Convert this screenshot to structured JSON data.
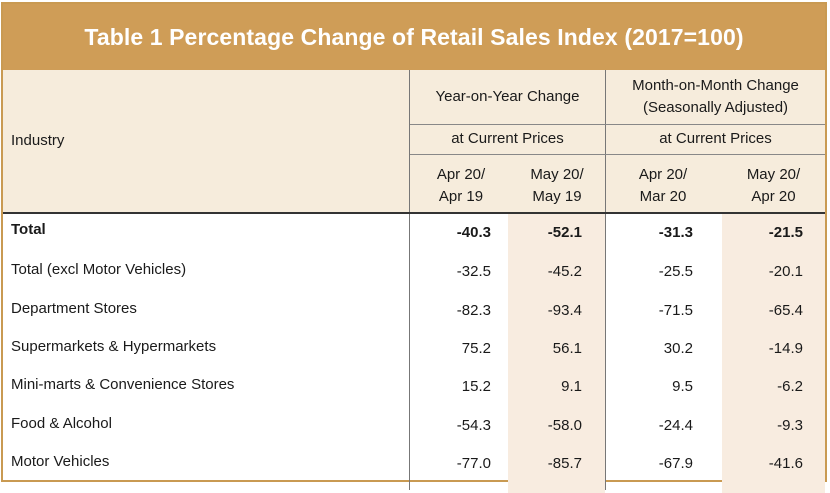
{
  "title": "Table 1   Percentage Change of Retail Sales Index (2017=100)",
  "header": {
    "industry_label": "Industry",
    "yoy_label": "Year-on-Year Change",
    "mom_label": "Month-on-Month Change\n(Seasonally Adjusted)",
    "yoy_prices": "at Current Prices",
    "mom_prices": "at Current Prices",
    "periods": [
      "Apr 20/\nApr 19",
      "May 20/\nMay 19",
      "Apr 20/\nMar 20",
      "May 20/\nApr 20"
    ]
  },
  "rows": [
    {
      "industry": "Total",
      "values": [
        "-40.3",
        "-52.1",
        "-31.3",
        "-21.5"
      ],
      "bold": true
    },
    {
      "industry": "Total (excl Motor Vehicles)",
      "values": [
        "-32.5",
        "-45.2",
        "-25.5",
        "-20.1"
      ]
    },
    {
      "industry": "Department Stores",
      "values": [
        "-82.3",
        "-93.4",
        "-71.5",
        "-65.4"
      ]
    },
    {
      "industry": "Supermarkets & Hypermarkets",
      "values": [
        "75.2",
        "56.1",
        "30.2",
        "-14.9"
      ]
    },
    {
      "industry": "Mini-marts & Convenience Stores",
      "values": [
        "15.2",
        "9.1",
        "9.5",
        "-6.2"
      ]
    },
    {
      "industry": "Food & Alcohol",
      "values": [
        "-54.3",
        "-58.0",
        "-24.4",
        "-9.3"
      ]
    },
    {
      "industry": "Motor Vehicles",
      "values": [
        "-77.0",
        "-85.7",
        "-67.9",
        "-41.6"
      ]
    }
  ],
  "colors": {
    "title_bg": "#cf9d57",
    "header_bg": "#f6ecdc",
    "shaded_column": "#f8ece0"
  }
}
